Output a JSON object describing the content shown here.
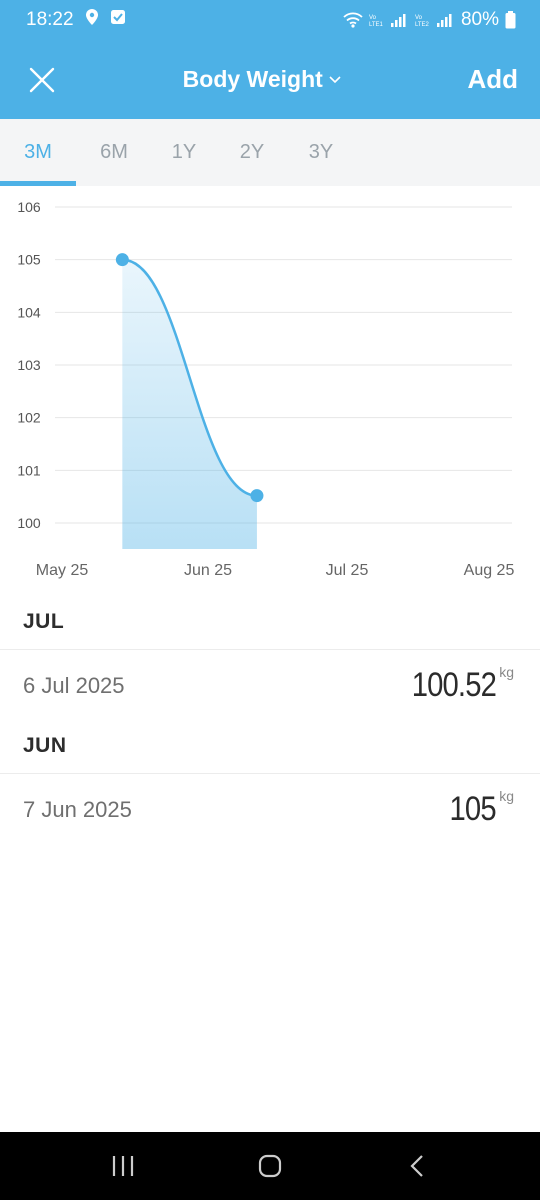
{
  "status_bar": {
    "time": "18:22",
    "battery": "80%",
    "icons": [
      "location-icon",
      "check-square-icon",
      "wifi-icon",
      "volte-lte1-signal-icon",
      "volte-lte2-signal-icon",
      "battery-icon"
    ]
  },
  "app_bar": {
    "title": "Body Weight",
    "add_label": "Add",
    "background": "#4db1e6"
  },
  "tabs": [
    {
      "label": "3M",
      "active": true
    },
    {
      "label": "6M",
      "active": false
    },
    {
      "label": "1Y",
      "active": false
    },
    {
      "label": "2Y",
      "active": false
    },
    {
      "label": "3Y",
      "active": false
    }
  ],
  "chart_data": {
    "type": "area",
    "y_ticks": [
      "106",
      "105",
      "104",
      "103",
      "102",
      "101",
      "100"
    ],
    "ylim": [
      100,
      106
    ],
    "x_ticks": [
      "May 25",
      "Jun 25",
      "Jul 25",
      "Aug 25"
    ],
    "points": [
      {
        "date": "7 Jun 2025",
        "value": 105
      },
      {
        "date": "6 Jul 2025",
        "value": 100.52
      }
    ],
    "line_color": "#4db1e6",
    "grid": true
  },
  "entries": {
    "sections": [
      {
        "month": "JUL",
        "rows": [
          {
            "date": "6 Jul 2025",
            "value": "100.52",
            "unit": "kg"
          }
        ]
      },
      {
        "month": "JUN",
        "rows": [
          {
            "date": "7 Jun 2025",
            "value": "105",
            "unit": "kg"
          }
        ]
      }
    ]
  },
  "nav_bar": {
    "buttons": [
      "recent-apps-icon",
      "home-icon",
      "back-icon"
    ]
  }
}
